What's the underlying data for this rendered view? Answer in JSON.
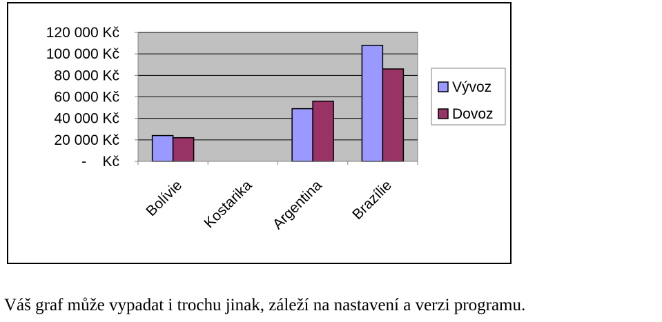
{
  "chart_data": {
    "type": "bar",
    "categories": [
      "Bolívie",
      "Kostarika",
      "Argentina",
      "Brazílie"
    ],
    "series": [
      {
        "name": "Vývoz",
        "values": [
          24000,
          0,
          49000,
          108000
        ],
        "color": "#9999ff"
      },
      {
        "name": "Dovoz",
        "values": [
          22000,
          0,
          56000,
          86000
        ],
        "color": "#993366"
      }
    ],
    "y_tick_labels": [
      "120 000 Kč",
      "100 000 Kč",
      "80 000 Kč",
      "60 000 Kč",
      "40 000 Kč",
      "20 000 Kč",
      "-    Kč"
    ],
    "y_tick_values": [
      120000,
      100000,
      80000,
      60000,
      40000,
      20000,
      0
    ],
    "ylim": [
      0,
      120000
    ],
    "grid": true,
    "plot_background": "#c0c0c0",
    "legend_position": "right",
    "title": "",
    "xlabel": "",
    "ylabel": ""
  },
  "caption": "Váš graf může vypadat i trochu jinak, záleží na nastavení a verzi programu."
}
